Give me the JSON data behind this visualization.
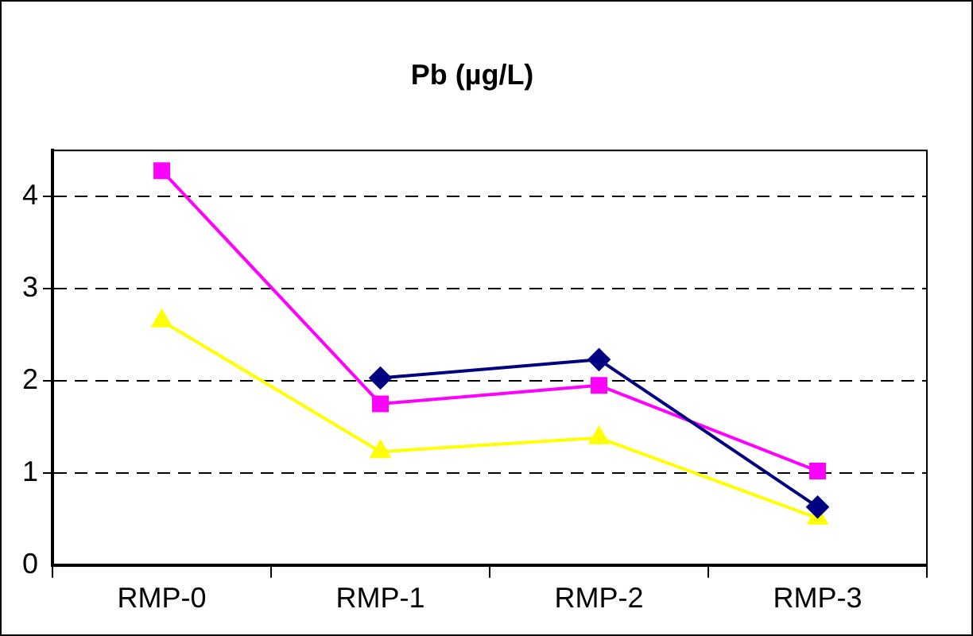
{
  "chart_data": {
    "type": "line",
    "title": "Pb (µg/L)",
    "categories": [
      "RMP-0",
      "RMP-1",
      "RMP-2",
      "RMP-3"
    ],
    "series": [
      {
        "color": "#000080",
        "marker": "diamond",
        "values": [
          null,
          2.03,
          2.23,
          0.63
        ]
      },
      {
        "color": "#ff00ff",
        "marker": "square",
        "values": [
          4.28,
          1.75,
          1.95,
          1.02
        ]
      },
      {
        "color": "#ffff00",
        "marker": "triangle",
        "values": [
          2.65,
          1.23,
          1.38,
          0.51
        ]
      }
    ],
    "ylim": [
      0,
      4.5
    ],
    "yticks": [
      0,
      1,
      2,
      3,
      4
    ],
    "grid": "y",
    "legend": false,
    "line_style": "solid"
  }
}
